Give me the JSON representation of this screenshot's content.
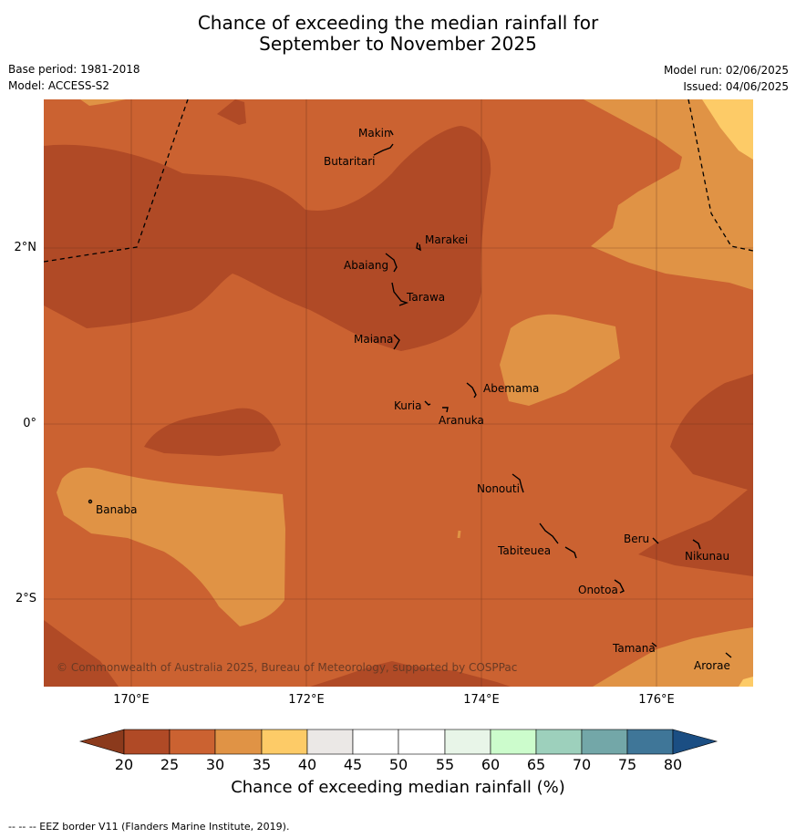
{
  "title_line1": "Chance of exceeding the median rainfall for",
  "title_line2": "September to November 2025",
  "meta": {
    "base_period": "Base period: 1981-2018",
    "model": "Model: ACCESS-S2",
    "model_run": "Model run: 02/06/2025",
    "issued": "Issued: 04/06/2025"
  },
  "axes": {
    "lat_labels": [
      "2°N",
      "0°",
      "2°S"
    ],
    "lon_labels": [
      "170°E",
      "172°E",
      "174°E",
      "176°E"
    ]
  },
  "places": [
    "Makin",
    "Butaritari",
    "Marakei",
    "Abaiang",
    "Tarawa",
    "Maiana",
    "Abemama",
    "Kuria",
    "Aranuka",
    "Banaba",
    "Nonouti",
    "Beru",
    "Tabiteuea",
    "Nikunau",
    "Onotoa",
    "Tamana",
    "Arorae"
  ],
  "copyright": "© Commonwealth of Australia 2025, Bureau of Meteorology, supported by COSPPac",
  "colorbar": {
    "ticks": [
      "20",
      "25",
      "30",
      "35",
      "40",
      "45",
      "50",
      "55",
      "60",
      "65",
      "70",
      "75",
      "80"
    ],
    "colors": {
      "under": "#8b3a1c",
      "c20_25": "#b04a26",
      "c25_30": "#cb6231",
      "c30_35": "#e09345",
      "c35_40": "#fdcb67",
      "c40_45": "#ebe8e6",
      "c45_50": "#ffffff",
      "c50_55": "#ffffff",
      "c55_60": "#e8f5e8",
      "c60_65": "#ccfccc",
      "c65_70": "#9dd0bc",
      "c70_75": "#73a7a8",
      "c75_80": "#3f7698",
      "over": "#1b4e83"
    },
    "label": "Chance of exceeding median rainfall (%)"
  },
  "footer": "--  --  -- EEZ border V11 (Flanders Marine Institute, 2019)."
}
